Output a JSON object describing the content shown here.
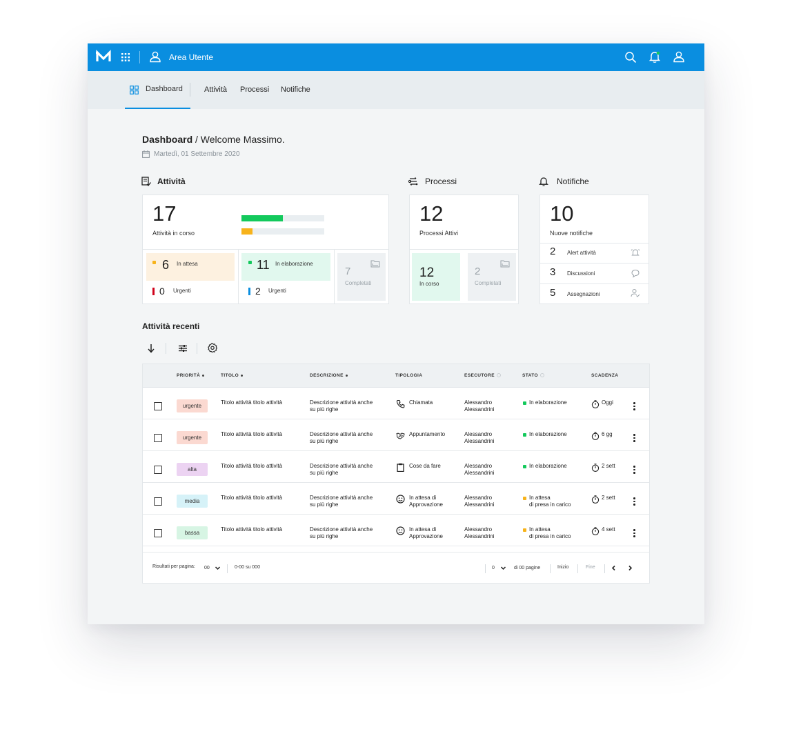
{
  "topbar": {
    "brand": "M",
    "area_label": "Area Utente"
  },
  "nav": {
    "tabs": [
      {
        "label": "Dashboard",
        "active": true
      },
      {
        "label": "Attività"
      },
      {
        "label": "Processi"
      },
      {
        "label": "Notifiche"
      }
    ]
  },
  "header": {
    "title_strong": "Dashboard",
    "title_rest": " / Welcome Massimo.",
    "date": "Martedì, 01 Settembre 2020"
  },
  "attivita": {
    "title": "Attività",
    "total": "17",
    "total_label": "Attività in corso",
    "progress": [
      {
        "color": "#13c95c",
        "fraction": 0.5
      },
      {
        "color": "#f7b31b",
        "fraction": 0.13
      }
    ],
    "attesa": {
      "count": "6",
      "label": "In attesa",
      "urgent": "0",
      "urgent_label": "Urgenti",
      "dot": "#f7b31b",
      "pipe": "#d0021b",
      "bg": "#fdf1e0"
    },
    "elaborazione": {
      "count": "11",
      "label": "In elaborazione",
      "urgent": "2",
      "urgent_label": "Urgenti",
      "dot": "#13c95c",
      "pipe": "#0a8ee0",
      "bg": "#e1f8ee"
    },
    "completati": {
      "count": "7",
      "label": "Completati"
    }
  },
  "processi": {
    "title": "Processi",
    "total": "12",
    "total_label": "Processi Attivi",
    "in_corso": {
      "count": "12",
      "label": "In corso"
    },
    "completati": {
      "count": "2",
      "label": "Completati"
    }
  },
  "notifiche": {
    "title": "Notifiche",
    "total": "10",
    "total_label": "Nuove notifiche",
    "items": [
      {
        "count": "2",
        "label": "Alert attività",
        "icon": "bell-alert-icon"
      },
      {
        "count": "3",
        "label": "Discussioni",
        "icon": "chat-bubble-icon"
      },
      {
        "count": "5",
        "label": "Assegnazioni",
        "icon": "user-check-icon"
      }
    ]
  },
  "recenti": {
    "title": "Attività recenti",
    "columns": [
      "PRIORITÀ",
      "TITOLO",
      "DESCRIZIONE",
      "TIPOLOGIA",
      "ESECUTORE",
      "STATO",
      "SCADENZA"
    ],
    "rows": [
      {
        "priority": "urgente",
        "priority_bg": "#fbd9d1",
        "title": "Titolo attività titolo attività",
        "desc1": "Descrizione attività anche",
        "desc2": "su più righe",
        "type1": "Chiamata",
        "type2": "",
        "type_icon": "phone-icon",
        "exec1": "Alessandro",
        "exec2": "Alessandrini",
        "status1": "In elaborazione",
        "status2": "",
        "status_color": "#13c95c",
        "due": "Oggi"
      },
      {
        "priority": "urgente",
        "priority_bg": "#fbd9d1",
        "title": "Titolo attività titolo attività",
        "desc1": "Descrizione attività anche",
        "desc2": "su più righe",
        "type1": "Appuntamento",
        "type2": "",
        "type_icon": "handshake-icon",
        "exec1": "Alessandro",
        "exec2": "Alessandrini",
        "status1": "In elaborazione",
        "status2": "",
        "status_color": "#13c95c",
        "due": "6 gg"
      },
      {
        "priority": "alta",
        "priority_bg": "#ecd3f2",
        "title": "Titolo attività titolo attività",
        "desc1": "Descrizione attività anche",
        "desc2": "su più righe",
        "type1": "Cose da fare",
        "type2": "",
        "type_icon": "clipboard-icon",
        "exec1": "Alessandro",
        "exec2": "Alessandrini",
        "status1": "In elaborazione",
        "status2": "",
        "status_color": "#13c95c",
        "due": "2 sett"
      },
      {
        "priority": "media",
        "priority_bg": "#d6f2f8",
        "title": "Titolo attività titolo attività",
        "desc1": "Descrizione attività anche",
        "desc2": "su più righe",
        "type1": "In attesa di",
        "type2": "Approvazione",
        "type_icon": "smiley-icon",
        "exec1": "Alessandro",
        "exec2": "Alessandrini",
        "status1": "In attesa",
        "status2": "di presa in carico",
        "status_color": "#f7b31b",
        "due": "2 sett"
      },
      {
        "priority": "bassa",
        "priority_bg": "#d7f5e4",
        "title": "Titolo attività titolo attività",
        "desc1": "Descrizione attività anche",
        "desc2": "su più righe",
        "type1": "In attesa di",
        "type2": "Approvazione",
        "type_icon": "smiley-icon",
        "exec1": "Alessandro",
        "exec2": "Alessandrini",
        "status1": "In attesa",
        "status2": "di presa in carico",
        "status_color": "#f7b31b",
        "due": "4 sett"
      }
    ],
    "footer": {
      "per_page_label": "Risultati per pagina:",
      "per_page_value": "00",
      "range": "0-00 su 000",
      "page_value": "0",
      "of_pages": "di 00 pagine",
      "first": "Inizio",
      "last": "Fine"
    }
  },
  "colors": {
    "brand": "#0a8ee0",
    "background": "#f3f5f6"
  }
}
